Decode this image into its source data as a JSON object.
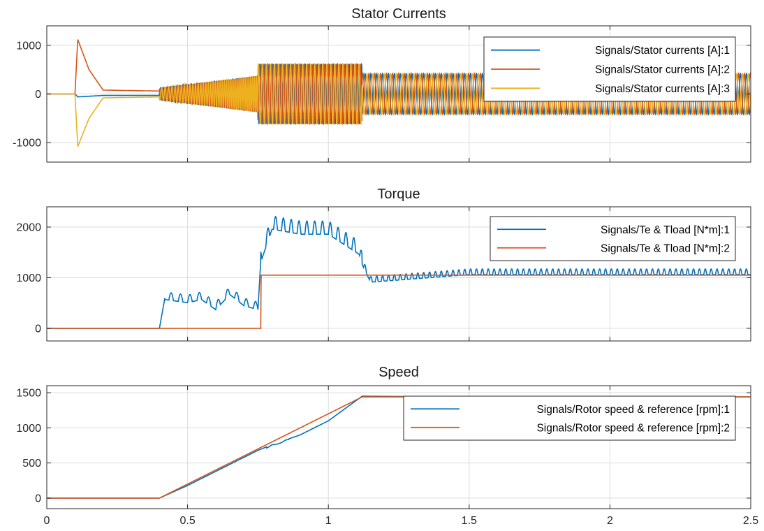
{
  "colors": {
    "blue": "#0072BD",
    "orange": "#D95319",
    "yellow": "#EDB120"
  },
  "chart_data": [
    {
      "type": "line",
      "title": "Stator Currents",
      "xlim": [
        0,
        2.5
      ],
      "ylim": [
        -1400,
        1400
      ],
      "xticks": [
        0,
        0.5,
        1,
        1.5,
        2,
        2.5
      ],
      "yticks": [
        -1000,
        0,
        1000
      ],
      "grid": true,
      "legend_position": "top-right",
      "series": [
        {
          "name": "Signals/Stator currents [A]:1",
          "color": "#0072BD",
          "x": [
            0,
            0.1,
            0.11,
            0.2,
            0.4,
            0.5,
            0.75,
            1.0,
            1.12,
            1.5,
            2.0,
            2.5
          ],
          "y": [
            0,
            0,
            -60,
            -30,
            -30,
            -150,
            550,
            550,
            400,
            400,
            380,
            380
          ]
        },
        {
          "name": "Signals/Stator currents [A]:2",
          "color": "#D95319",
          "x": [
            0,
            0.1,
            0.11,
            0.15,
            0.2,
            0.4,
            0.5,
            0.75,
            1.0,
            1.12,
            1.5,
            2.0,
            2.5
          ],
          "y": [
            0,
            0,
            1120,
            500,
            80,
            60,
            -450,
            -650,
            -650,
            -450,
            -450,
            -420,
            -420
          ]
        },
        {
          "name": "Signals/Stator currents [A]:3",
          "color": "#EDB120",
          "x": [
            0,
            0.1,
            0.11,
            0.15,
            0.2,
            0.4,
            0.5,
            0.75,
            1.0,
            1.12,
            1.5,
            2.0,
            2.5
          ],
          "y": [
            0,
            0,
            -1080,
            -500,
            -80,
            -60,
            450,
            550,
            550,
            420,
            420,
            400,
            400
          ]
        }
      ]
    },
    {
      "type": "line",
      "title": "Torque",
      "xlim": [
        0,
        2.5
      ],
      "ylim": [
        -250,
        2400
      ],
      "xticks": [
        0,
        0.5,
        1,
        1.5,
        2,
        2.5
      ],
      "yticks": [
        0,
        1000,
        2000
      ],
      "grid": true,
      "legend_position": "top-right",
      "series": [
        {
          "name": "Signals/Te & Tload [N*m]:1",
          "color": "#0072BD",
          "x": [
            0,
            0.4,
            0.42,
            0.5,
            0.55,
            0.6,
            0.65,
            0.7,
            0.75,
            0.76,
            0.8,
            0.9,
            1.0,
            1.11,
            1.12,
            1.15,
            1.5,
            2.0,
            2.5
          ],
          "y": [
            0,
            0,
            620,
            560,
            620,
            420,
            720,
            500,
            420,
            1400,
            2050,
            1950,
            1950,
            1550,
            1300,
            950,
            1100,
            1100,
            1100
          ]
        },
        {
          "name": "Signals/Te & Tload [N*m]:2",
          "color": "#D95319",
          "x": [
            0,
            0.76,
            0.761,
            2.5
          ],
          "y": [
            0,
            0,
            1050,
            1050
          ]
        }
      ]
    },
    {
      "type": "line",
      "title": "Speed",
      "xlim": [
        0,
        2.5
      ],
      "ylim": [
        -150,
        1600
      ],
      "xticks": [
        0,
        0.5,
        1,
        1.5,
        2,
        2.5
      ],
      "xticklabels": [
        "0",
        "0.5",
        "1",
        "1.5",
        "2",
        "2.5"
      ],
      "yticks": [
        0,
        500,
        1000,
        1500
      ],
      "grid": true,
      "legend_position": "top-right",
      "series": [
        {
          "name": "Signals/Rotor speed & reference [rpm]:1",
          "color": "#0072BD",
          "x": [
            0,
            0.4,
            0.5,
            0.75,
            0.8,
            0.9,
            1.0,
            1.12,
            1.5,
            2.0,
            2.5
          ],
          "y": [
            0,
            0,
            180,
            680,
            760,
            900,
            1100,
            1450,
            1440,
            1440,
            1440
          ]
        },
        {
          "name": "Signals/Rotor speed & reference [rpm]:2",
          "color": "#D95319",
          "x": [
            0,
            0.4,
            1.12,
            2.5
          ],
          "y": [
            0,
            0,
            1440,
            1440
          ]
        }
      ]
    }
  ]
}
